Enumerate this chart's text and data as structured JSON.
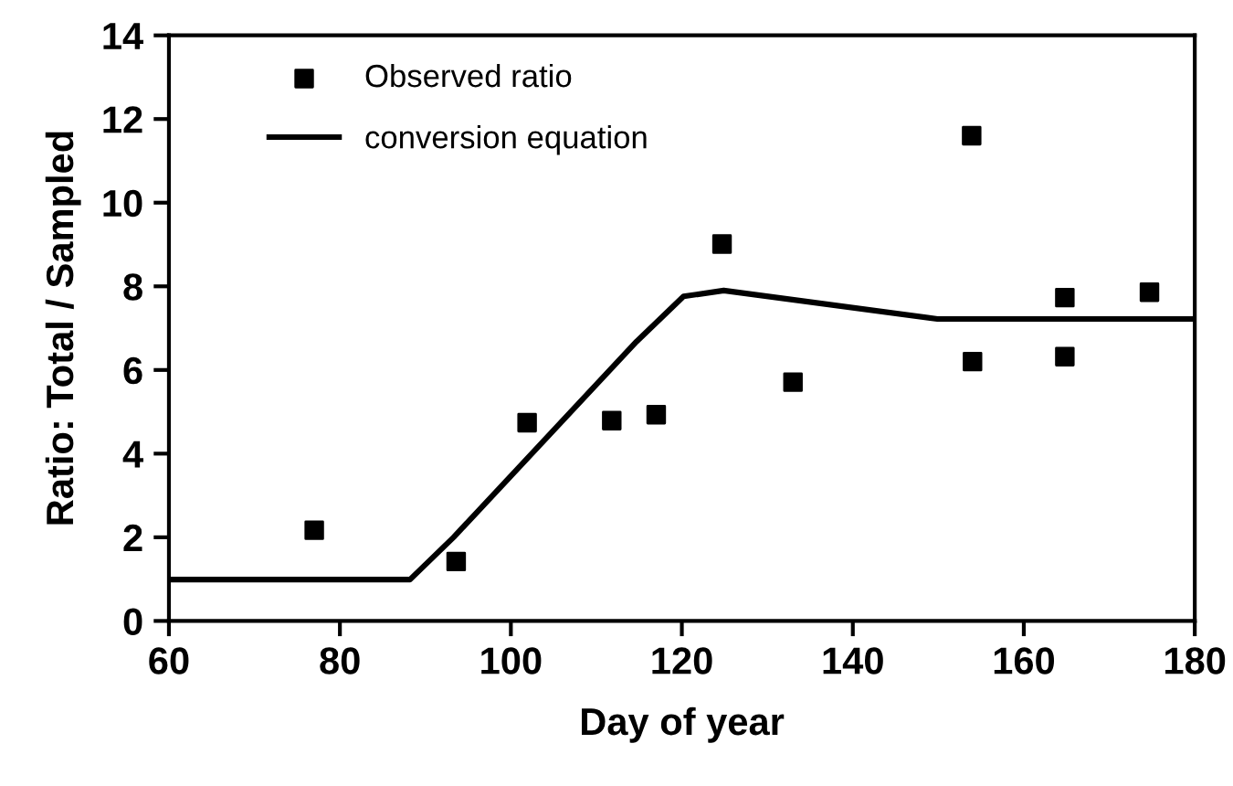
{
  "chart_data": {
    "type": "scatter",
    "xlabel": "Day of year",
    "ylabel": "Ratio: Total / Sampled",
    "xlim": [
      60,
      180
    ],
    "xticks": [
      60,
      80,
      100,
      120,
      140,
      160,
      180
    ],
    "ylim": [
      0,
      14
    ],
    "yticks": [
      0,
      2,
      4,
      6,
      8,
      10,
      12,
      14
    ],
    "grid": false,
    "legend": "top left",
    "series": [
      {
        "name": "Observed ratio",
        "marker": "square",
        "color": "#000000",
        "x": [
          77,
          93.6,
          101.9,
          111.8,
          117,
          124.7,
          133,
          153.9,
          154,
          164.8,
          164.8,
          174.7
        ],
        "values": [
          2.17,
          1.42,
          4.74,
          4.79,
          4.93,
          9.01,
          5.71,
          11.6,
          6.2,
          7.73,
          6.32,
          7.86
        ]
      },
      {
        "name": "conversion equation",
        "type": "line",
        "line_style": "solid",
        "color": "#000000",
        "x": [
          60,
          88.2,
          93.3,
          114.7,
          120.2,
          124.9,
          149.9,
          180
        ],
        "values": [
          0.99,
          0.99,
          2.0,
          6.68,
          7.76,
          7.9,
          7.22,
          7.22
        ]
      }
    ]
  }
}
